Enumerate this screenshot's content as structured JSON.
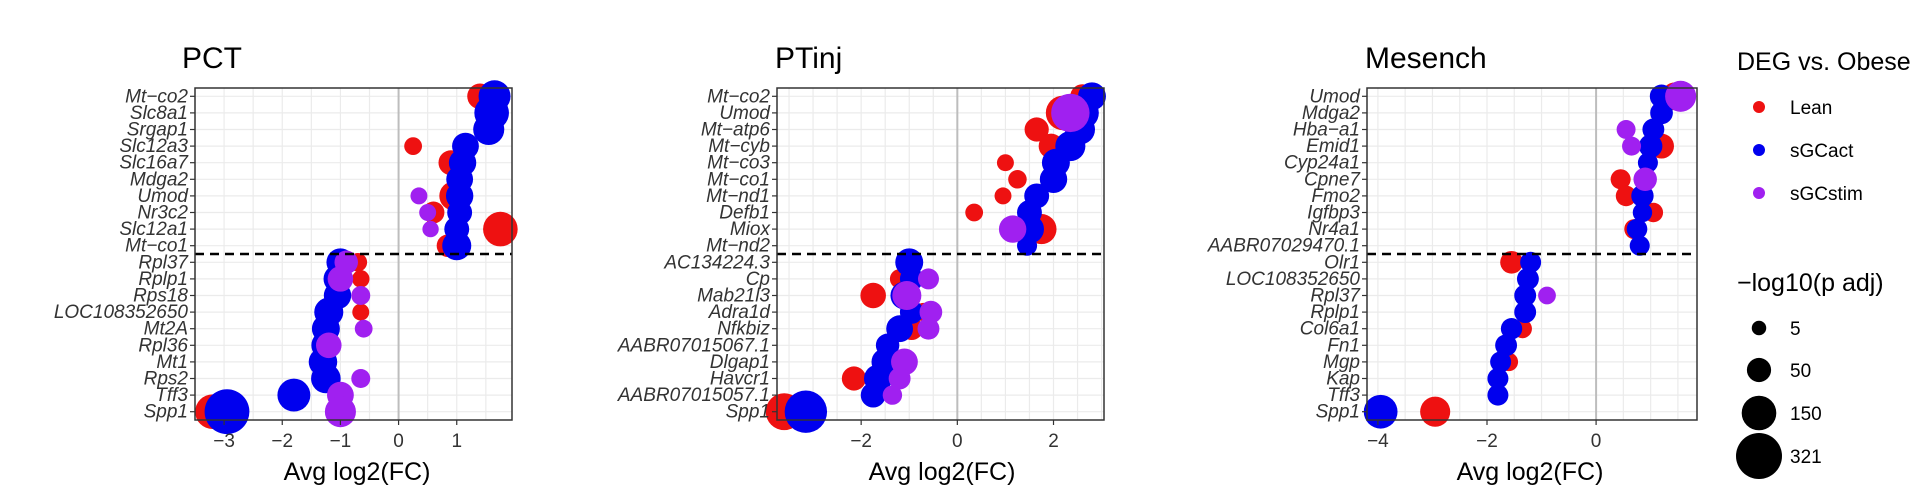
{
  "chart_data": [
    {
      "type": "scatter",
      "title": "PCT",
      "xlabel": "Avg log2(FC)",
      "xlim": [
        -3.5,
        1.95
      ],
      "xticks": [
        -3,
        -2,
        -1,
        0,
        1
      ],
      "genes": [
        "Mt−co2",
        "Slc8a1",
        "Srgap1",
        "Slc12a3",
        "Slc16a7",
        "Mdga2",
        "Umod",
        "Nr3c2",
        "Slc12a1",
        "Mt−co1",
        "Rpl37",
        "Rplp1",
        "Rps18",
        "LOC108352650",
        "Mt2A",
        "Rpl36",
        "Mt1",
        "Rps2",
        "Tff3",
        "Spp1"
      ],
      "points": [
        {
          "gene": "Mt−co2",
          "fc": 1.4,
          "p": 60,
          "group": "Lean"
        },
        {
          "gene": "Mt−co2",
          "fc": 1.65,
          "p": 120,
          "group": "sGCact"
        },
        {
          "gene": "Slc8a1",
          "fc": 1.6,
          "p": 150,
          "group": "sGCact"
        },
        {
          "gene": "Srgap1",
          "fc": 1.55,
          "p": 110,
          "group": "sGCact"
        },
        {
          "gene": "Slc12a3",
          "fc": 0.25,
          "p": 15,
          "group": "Lean"
        },
        {
          "gene": "Slc12a3",
          "fc": 1.15,
          "p": 70,
          "group": "sGCact"
        },
        {
          "gene": "Slc16a7",
          "fc": 0.9,
          "p": 55,
          "group": "Lean"
        },
        {
          "gene": "Slc16a7",
          "fc": 1.1,
          "p": 75,
          "group": "sGCact"
        },
        {
          "gene": "Mdga2",
          "fc": 1.05,
          "p": 70,
          "group": "sGCact"
        },
        {
          "gene": "Umod",
          "fc": 0.35,
          "p": 12,
          "group": "sGCstim"
        },
        {
          "gene": "Umod",
          "fc": 0.95,
          "p": 90,
          "group": "Lean"
        },
        {
          "gene": "Umod",
          "fc": 1.05,
          "p": 75,
          "group": "sGCact"
        },
        {
          "gene": "Nr3c2",
          "fc": 0.6,
          "p": 35,
          "group": "Lean"
        },
        {
          "gene": "Nr3c2",
          "fc": 0.5,
          "p": 12,
          "group": "sGCstim"
        },
        {
          "gene": "Nr3c2",
          "fc": 1.05,
          "p": 55,
          "group": "sGCact"
        },
        {
          "gene": "Slc12a1",
          "fc": 0.55,
          "p": 10,
          "group": "sGCstim"
        },
        {
          "gene": "Slc12a1",
          "fc": 1.0,
          "p": 55,
          "group": "sGCact"
        },
        {
          "gene": "Slc12a1",
          "fc": 1.75,
          "p": 150,
          "group": "Lean"
        },
        {
          "gene": "Mt−co1",
          "fc": 0.85,
          "p": 40,
          "group": "Lean"
        },
        {
          "gene": "Mt−co1",
          "fc": 1.0,
          "p": 90,
          "group": "sGCact"
        },
        {
          "gene": "Rpl37",
          "fc": -1.0,
          "p": 80,
          "group": "sGCact"
        },
        {
          "gene": "Rpl37",
          "fc": -0.9,
          "p": 45,
          "group": "sGCstim"
        },
        {
          "gene": "Rpl37",
          "fc": -0.7,
          "p": 18,
          "group": "Lean"
        },
        {
          "gene": "Rplp1",
          "fc": -1.05,
          "p": 80,
          "group": "sGCact"
        },
        {
          "gene": "Rplp1",
          "fc": -1.0,
          "p": 60,
          "group": "sGCstim"
        },
        {
          "gene": "Rplp1",
          "fc": -0.65,
          "p": 14,
          "group": "Lean"
        },
        {
          "gene": "Rps18",
          "fc": -1.05,
          "p": 75,
          "group": "sGCact"
        },
        {
          "gene": "Rps18",
          "fc": -0.65,
          "p": 20,
          "group": "sGCstim"
        },
        {
          "gene": "LOC108352650",
          "fc": -1.2,
          "p": 90,
          "group": "sGCact"
        },
        {
          "gene": "LOC108352650",
          "fc": -0.65,
          "p": 12,
          "group": "Lean"
        },
        {
          "gene": "Mt2A",
          "fc": -1.25,
          "p": 80,
          "group": "sGCact"
        },
        {
          "gene": "Mt2A",
          "fc": -0.6,
          "p": 15,
          "group": "sGCstim"
        },
        {
          "gene": "Rpl36",
          "fc": -1.25,
          "p": 90,
          "group": "sGCact"
        },
        {
          "gene": "Rpl36",
          "fc": -1.2,
          "p": 60,
          "group": "sGCstim"
        },
        {
          "gene": "Mt1",
          "fc": -1.3,
          "p": 85,
          "group": "sGCact"
        },
        {
          "gene": "Rps2",
          "fc": -1.25,
          "p": 95,
          "group": "sGCact"
        },
        {
          "gene": "Rps2",
          "fc": -0.65,
          "p": 20,
          "group": "sGCstim"
        },
        {
          "gene": "Tff3",
          "fc": -1.8,
          "p": 130,
          "group": "sGCact"
        },
        {
          "gene": "Tff3",
          "fc": -1.0,
          "p": 70,
          "group": "sGCstim"
        },
        {
          "gene": "Spp1",
          "fc": -3.2,
          "p": 150,
          "group": "Lean"
        },
        {
          "gene": "Spp1",
          "fc": -2.95,
          "p": 300,
          "group": "sGCact"
        },
        {
          "gene": "Spp1",
          "fc": -1.0,
          "p": 110,
          "group": "sGCstim"
        }
      ]
    },
    {
      "type": "scatter",
      "title": "PTinj",
      "xlabel": "Avg log2(FC)",
      "xlim": [
        -3.75,
        3.05
      ],
      "xticks": [
        -2,
        0,
        2
      ],
      "genes": [
        "Mt−co2",
        "Umod",
        "Mt−atp6",
        "Mt−cyb",
        "Mt−co3",
        "Mt−co1",
        "Mt−nd1",
        "Defb1",
        "Miox",
        "Mt−nd2",
        "AC134224.3",
        "Cp",
        "Mab21l3",
        "Adra1d",
        "Nfkbiz",
        "AABR07015067.1",
        "Dlgap1",
        "Havcr1",
        "AABR07015057.1",
        "Spp1"
      ],
      "points": [
        {
          "gene": "Mt−co2",
          "fc": 2.6,
          "p": 50,
          "group": "Lean"
        },
        {
          "gene": "Mt−co2",
          "fc": 2.8,
          "p": 80,
          "group": "sGCact"
        },
        {
          "gene": "Umod",
          "fc": 2.2,
          "p": 150,
          "group": "Lean"
        },
        {
          "gene": "Umod",
          "fc": 2.6,
          "p": 130,
          "group": "sGCact"
        },
        {
          "gene": "Umod",
          "fc": 2.35,
          "p": 200,
          "group": "sGCstim"
        },
        {
          "gene": "Mt−atp6",
          "fc": 1.65,
          "p": 50,
          "group": "Lean"
        },
        {
          "gene": "Mt−atp6",
          "fc": 2.55,
          "p": 100,
          "group": "sGCact"
        },
        {
          "gene": "Mt−cyb",
          "fc": 1.95,
          "p": 55,
          "group": "Lean"
        },
        {
          "gene": "Mt−cyb",
          "fc": 2.35,
          "p": 100,
          "group": "sGCact"
        },
        {
          "gene": "Mt−co3",
          "fc": 1.0,
          "p": 12,
          "group": "Lean"
        },
        {
          "gene": "Mt−co3",
          "fc": 2.05,
          "p": 80,
          "group": "sGCact"
        },
        {
          "gene": "Mt−co1",
          "fc": 1.25,
          "p": 18,
          "group": "Lean"
        },
        {
          "gene": "Mt−co1",
          "fc": 2.0,
          "p": 75,
          "group": "sGCact"
        },
        {
          "gene": "Mt−nd1",
          "fc": 0.95,
          "p": 12,
          "group": "Lean"
        },
        {
          "gene": "Mt−nd1",
          "fc": 1.65,
          "p": 55,
          "group": "sGCact"
        },
        {
          "gene": "Defb1",
          "fc": 0.35,
          "p": 15,
          "group": "Lean"
        },
        {
          "gene": "Defb1",
          "fc": 1.5,
          "p": 55,
          "group": "sGCact"
        },
        {
          "gene": "Miox",
          "fc": 1.75,
          "p": 100,
          "group": "Lean"
        },
        {
          "gene": "Miox",
          "fc": 1.5,
          "p": 90,
          "group": "sGCact"
        },
        {
          "gene": "Miox",
          "fc": 1.15,
          "p": 75,
          "group": "sGCstim"
        },
        {
          "gene": "Mt−nd2",
          "fc": 1.45,
          "p": 25,
          "group": "sGCact"
        },
        {
          "gene": "AC134224.3",
          "fc": -1.0,
          "p": 80,
          "group": "sGCact"
        },
        {
          "gene": "Cp",
          "fc": -1.2,
          "p": 22,
          "group": "Lean"
        },
        {
          "gene": "Cp",
          "fc": -0.95,
          "p": 45,
          "group": "sGCact"
        },
        {
          "gene": "Cp",
          "fc": -0.6,
          "p": 30,
          "group": "sGCstim"
        },
        {
          "gene": "Mab21l3",
          "fc": -1.75,
          "p": 60,
          "group": "Lean"
        },
        {
          "gene": "Mab21l3",
          "fc": -1.1,
          "p": 80,
          "group": "sGCact"
        },
        {
          "gene": "Mab21l3",
          "fc": -1.05,
          "p": 90,
          "group": "sGCstim"
        },
        {
          "gene": "Adra1d",
          "fc": -0.7,
          "p": 18,
          "group": "Lean"
        },
        {
          "gene": "Adra1d",
          "fc": -0.95,
          "p": 45,
          "group": "sGCact"
        },
        {
          "gene": "Adra1d",
          "fc": -0.55,
          "p": 40,
          "group": "sGCstim"
        },
        {
          "gene": "Nfkbiz",
          "fc": -0.95,
          "p": 40,
          "group": "Lean"
        },
        {
          "gene": "Nfkbiz",
          "fc": -1.2,
          "p": 70,
          "group": "sGCact"
        },
        {
          "gene": "Nfkbiz",
          "fc": -0.6,
          "p": 35,
          "group": "sGCstim"
        },
        {
          "gene": "AABR07015067.1",
          "fc": -1.45,
          "p": 45,
          "group": "sGCact"
        },
        {
          "gene": "Dlgap1",
          "fc": -1.5,
          "p": 75,
          "group": "sGCact"
        },
        {
          "gene": "Dlgap1",
          "fc": -1.1,
          "p": 70,
          "group": "sGCstim"
        },
        {
          "gene": "Havcr1",
          "fc": -2.15,
          "p": 50,
          "group": "Lean"
        },
        {
          "gene": "Havcr1",
          "fc": -1.65,
          "p": 80,
          "group": "sGCact"
        },
        {
          "gene": "Havcr1",
          "fc": -1.2,
          "p": 35,
          "group": "sGCstim"
        },
        {
          "gene": "AABR07015057.1",
          "fc": -1.75,
          "p": 55,
          "group": "sGCact"
        },
        {
          "gene": "AABR07015057.1",
          "fc": -1.35,
          "p": 22,
          "group": "sGCstim"
        },
        {
          "gene": "Spp1",
          "fc": -3.6,
          "p": 180,
          "group": "Lean"
        },
        {
          "gene": "Spp1",
          "fc": -3.15,
          "p": 260,
          "group": "sGCact"
        }
      ]
    },
    {
      "type": "scatter",
      "title": "Mesench",
      "xlabel": "Avg log2(FC)",
      "xlim": [
        -4.2,
        1.85
      ],
      "xticks": [
        -4,
        -2,
        0
      ],
      "genes": [
        "Umod",
        "Mdga2",
        "Hba−a1",
        "Emid1",
        "Cyp24a1",
        "Cpne7",
        "Fmo2",
        "Igfbp3",
        "Nr4a1",
        "AABR07029470.1",
        "Olr1",
        "LOC108352650",
        "Rpl37",
        "Rplp1",
        "Col6a1",
        "Fn1",
        "Mgp",
        "Kap",
        "Tff3",
        "Spp1"
      ],
      "points": [
        {
          "gene": "Umod",
          "fc": 1.45,
          "p": 80,
          "group": "Lean"
        },
        {
          "gene": "Umod",
          "fc": 1.2,
          "p": 45,
          "group": "sGCact"
        },
        {
          "gene": "Umod",
          "fc": 1.55,
          "p": 110,
          "group": "sGCstim"
        },
        {
          "gene": "Mdga2",
          "fc": 1.2,
          "p": 40,
          "group": "sGCact"
        },
        {
          "gene": "Hba−a1",
          "fc": 1.05,
          "p": 35,
          "group": "sGCact"
        },
        {
          "gene": "Hba−a1",
          "fc": 0.55,
          "p": 20,
          "group": "sGCstim"
        },
        {
          "gene": "Emid1",
          "fc": 1.2,
          "p": 55,
          "group": "Lean"
        },
        {
          "gene": "Emid1",
          "fc": 1.0,
          "p": 45,
          "group": "sGCact"
        },
        {
          "gene": "Emid1",
          "fc": 0.65,
          "p": 20,
          "group": "sGCstim"
        },
        {
          "gene": "Cyp24a1",
          "fc": 0.95,
          "p": 25,
          "group": "sGCact"
        },
        {
          "gene": "Cpne7",
          "fc": 0.45,
          "p": 25,
          "group": "Lean"
        },
        {
          "gene": "Cpne7",
          "fc": 0.9,
          "p": 40,
          "group": "sGCact"
        },
        {
          "gene": "Cpne7",
          "fc": 0.9,
          "p": 45,
          "group": "sGCstim"
        },
        {
          "gene": "Fmo2",
          "fc": 0.55,
          "p": 28,
          "group": "Lean"
        },
        {
          "gene": "Fmo2",
          "fc": 0.85,
          "p": 38,
          "group": "sGCact"
        },
        {
          "gene": "Igfbp3",
          "fc": 1.05,
          "p": 22,
          "group": "Lean"
        },
        {
          "gene": "Igfbp3",
          "fc": 0.85,
          "p": 22,
          "group": "sGCact"
        },
        {
          "gene": "Nr4a1",
          "fc": 0.7,
          "p": 25,
          "group": "Lean"
        },
        {
          "gene": "Nr4a1",
          "fc": 0.75,
          "p": 28,
          "group": "sGCact"
        },
        {
          "gene": "AABR07029470.1",
          "fc": 0.8,
          "p": 25,
          "group": "sGCact"
        },
        {
          "gene": "Olr1",
          "fc": -1.55,
          "p": 40,
          "group": "Lean"
        },
        {
          "gene": "Olr1",
          "fc": -1.2,
          "p": 30,
          "group": "sGCact"
        },
        {
          "gene": "LOC108352650",
          "fc": -1.25,
          "p": 35,
          "group": "sGCact"
        },
        {
          "gene": "Rpl37",
          "fc": -1.3,
          "p": 35,
          "group": "sGCact"
        },
        {
          "gene": "Rpl37",
          "fc": -0.9,
          "p": 15,
          "group": "sGCstim"
        },
        {
          "gene": "Rplp1",
          "fc": -1.3,
          "p": 35,
          "group": "sGCact"
        },
        {
          "gene": "Col6a1",
          "fc": -1.35,
          "p": 20,
          "group": "Lean"
        },
        {
          "gene": "Col6a1",
          "fc": -1.55,
          "p": 32,
          "group": "sGCact"
        },
        {
          "gene": "Fn1",
          "fc": -1.65,
          "p": 35,
          "group": "sGCact"
        },
        {
          "gene": "Mgp",
          "fc": -1.6,
          "p": 18,
          "group": "Lean"
        },
        {
          "gene": "Mgp",
          "fc": -1.75,
          "p": 30,
          "group": "sGCact"
        },
        {
          "gene": "Kap",
          "fc": -1.8,
          "p": 30,
          "group": "sGCact"
        },
        {
          "gene": "Tff3",
          "fc": -1.8,
          "p": 30,
          "group": "sGCact"
        },
        {
          "gene": "Spp1",
          "fc": -2.95,
          "p": 100,
          "group": "Lean"
        },
        {
          "gene": "Spp1",
          "fc": -3.95,
          "p": 140,
          "group": "sGCact"
        }
      ]
    }
  ],
  "legend": {
    "color_title": "DEG vs. Obese",
    "groups": [
      {
        "name": "Lean",
        "color": "#ee1111"
      },
      {
        "name": "sGCact",
        "color": "#0000ee"
      },
      {
        "name": "sGCstim",
        "color": "#a020f0"
      }
    ],
    "size_title": "−log10(p adj)",
    "sizes": [
      {
        "label": "5",
        "value": 5
      },
      {
        "label": "50",
        "value": 50
      },
      {
        "label": "150",
        "value": 150
      },
      {
        "label": "321",
        "value": 321
      }
    ]
  }
}
